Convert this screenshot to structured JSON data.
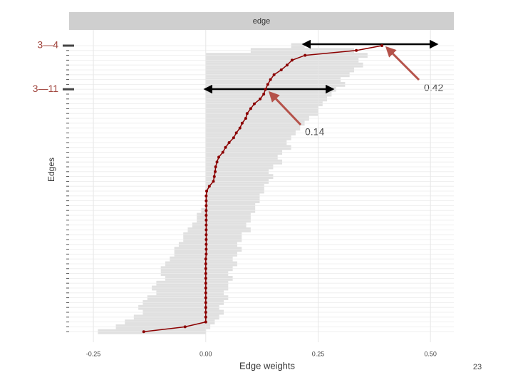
{
  "chart_data": {
    "type": "line",
    "panel_title": "edge",
    "x_label": "Edge weights",
    "y_label": "Edges",
    "categories": [
      "3—4",
      null,
      null,
      null,
      null,
      null,
      null,
      null,
      null,
      "3—11",
      null,
      null,
      null,
      null,
      null,
      null,
      null,
      null,
      null,
      null,
      null,
      null,
      null,
      null,
      null,
      null,
      null,
      null,
      null,
      null,
      null,
      null,
      null,
      null,
      null,
      null,
      null,
      null,
      null,
      null,
      null,
      null,
      null,
      null,
      null,
      null,
      null,
      null,
      null,
      null,
      null,
      null,
      null,
      null,
      null,
      null,
      null,
      null,
      null,
      null
    ],
    "series": [
      {
        "color": "#8b0000",
        "values": [
          0.392,
          0.335,
          0.221,
          0.192,
          0.181,
          0.168,
          0.152,
          0.144,
          0.138,
          0.133,
          0.129,
          0.121,
          0.108,
          0.1,
          0.092,
          0.089,
          0.081,
          0.076,
          0.068,
          0.062,
          0.052,
          0.044,
          0.038,
          0.029,
          0.025,
          0.022,
          0.021,
          0.019,
          0.017,
          0.008,
          0.002,
          0.001,
          0.001,
          0.001,
          0.001,
          0.001,
          0.001,
          0.001,
          0.001,
          0.001,
          0.001,
          0.001,
          0.001,
          0.001,
          0,
          0,
          0,
          0,
          0,
          0,
          0,
          0,
          0,
          0,
          0,
          0,
          0,
          0,
          -0.046,
          -0.138
        ]
      }
    ],
    "band": {
      "color": "#e0e0e0",
      "low": [
        0.19,
        0.1,
        0,
        0,
        0,
        0,
        0,
        0,
        0,
        0,
        0,
        0,
        0,
        0,
        0,
        0,
        0,
        0,
        0,
        0,
        0,
        0,
        0,
        0,
        0,
        0,
        0,
        0,
        0,
        0,
        0,
        0,
        0,
        0,
        -0.01,
        -0.02,
        -0.02,
        -0.03,
        -0.04,
        -0.05,
        -0.05,
        -0.06,
        -0.07,
        -0.07,
        -0.08,
        -0.09,
        -0.1,
        -0.1,
        -0.09,
        -0.11,
        -0.12,
        -0.11,
        -0.13,
        -0.14,
        -0.15,
        -0.14,
        -0.16,
        -0.18,
        -0.2,
        -0.24
      ],
      "high": [
        0.22,
        0.33,
        0.36,
        0.34,
        0.35,
        0.33,
        0.32,
        0.3,
        0.31,
        0.29,
        0.28,
        0.27,
        0.26,
        0.25,
        0.25,
        0.23,
        0.22,
        0.21,
        0.2,
        0.19,
        0.18,
        0.19,
        0.17,
        0.16,
        0.17,
        0.15,
        0.14,
        0.15,
        0.14,
        0.13,
        0.13,
        0.12,
        0.12,
        0.11,
        0.11,
        0.1,
        0.1,
        0.09,
        0.1,
        0.08,
        0.08,
        0.07,
        0.08,
        0.07,
        0.06,
        0.07,
        0.06,
        0.05,
        0.06,
        0.05,
        0.05,
        0.04,
        0.05,
        0.04,
        0.03,
        0.04,
        0.03,
        0.02,
        0.01,
        0.0
      ]
    },
    "xlim": [
      -0.304,
      0.552
    ],
    "xticks": [
      {
        "value": -0.25,
        "label": "-0.25"
      },
      {
        "value": 0,
        "label": "0.00"
      },
      {
        "value": 0.25,
        "label": "0.25"
      },
      {
        "value": 0.5,
        "label": "0.50"
      }
    ],
    "grid": true,
    "annotations": [
      "0.42",
      "0.14"
    ],
    "page_number": "23"
  }
}
